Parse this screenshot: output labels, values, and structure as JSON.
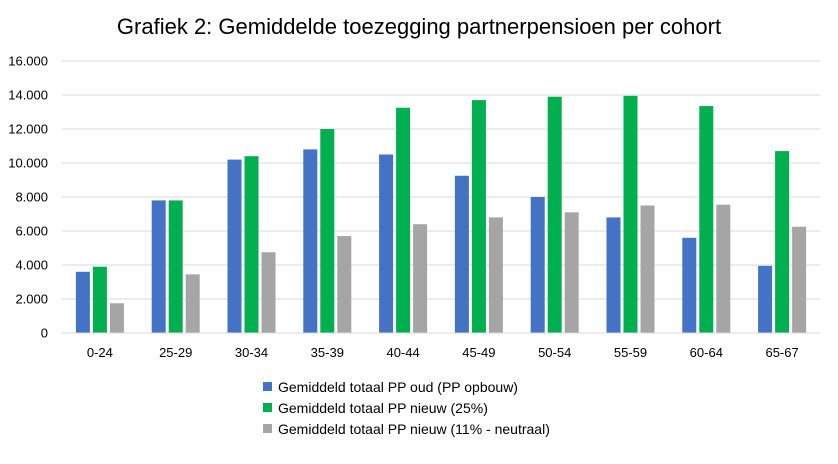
{
  "chart_data": {
    "type": "bar",
    "title": "Grafiek 2: Gemiddelde toezegging partnerpensioen per cohort",
    "xlabel": "",
    "ylabel": "",
    "categories": [
      "0-24",
      "25-29",
      "30-34",
      "35-39",
      "40-44",
      "45-49",
      "50-54",
      "55-59",
      "60-64",
      "65-67"
    ],
    "series": [
      {
        "name": "Gemiddeld totaal PP oud (PP opbouw)",
        "color": "#4472C4",
        "values": [
          3600,
          7800,
          10200,
          10800,
          10500,
          9250,
          8000,
          6800,
          5600,
          3950
        ]
      },
      {
        "name": "Gemiddeld totaal PP nieuw (25%)",
        "color": "#00B050",
        "values": [
          3900,
          7800,
          10400,
          12000,
          13250,
          13700,
          13900,
          13950,
          13350,
          10700
        ]
      },
      {
        "name": "Gemiddeld totaal PP nieuw (11% - neutraal)",
        "color": "#A5A5A5",
        "values": [
          1750,
          3450,
          4750,
          5700,
          6400,
          6800,
          7100,
          7500,
          7550,
          6250
        ]
      }
    ],
    "ylim": [
      0,
      16000
    ],
    "yticks": [
      0,
      2000,
      4000,
      6000,
      8000,
      10000,
      12000,
      14000,
      16000
    ],
    "ytick_labels": [
      "0",
      "2.000",
      "4.000",
      "6.000",
      "8.000",
      "10.000",
      "12.000",
      "14.000",
      "16.000"
    ],
    "grid": true,
    "legend_position": "bottom"
  }
}
